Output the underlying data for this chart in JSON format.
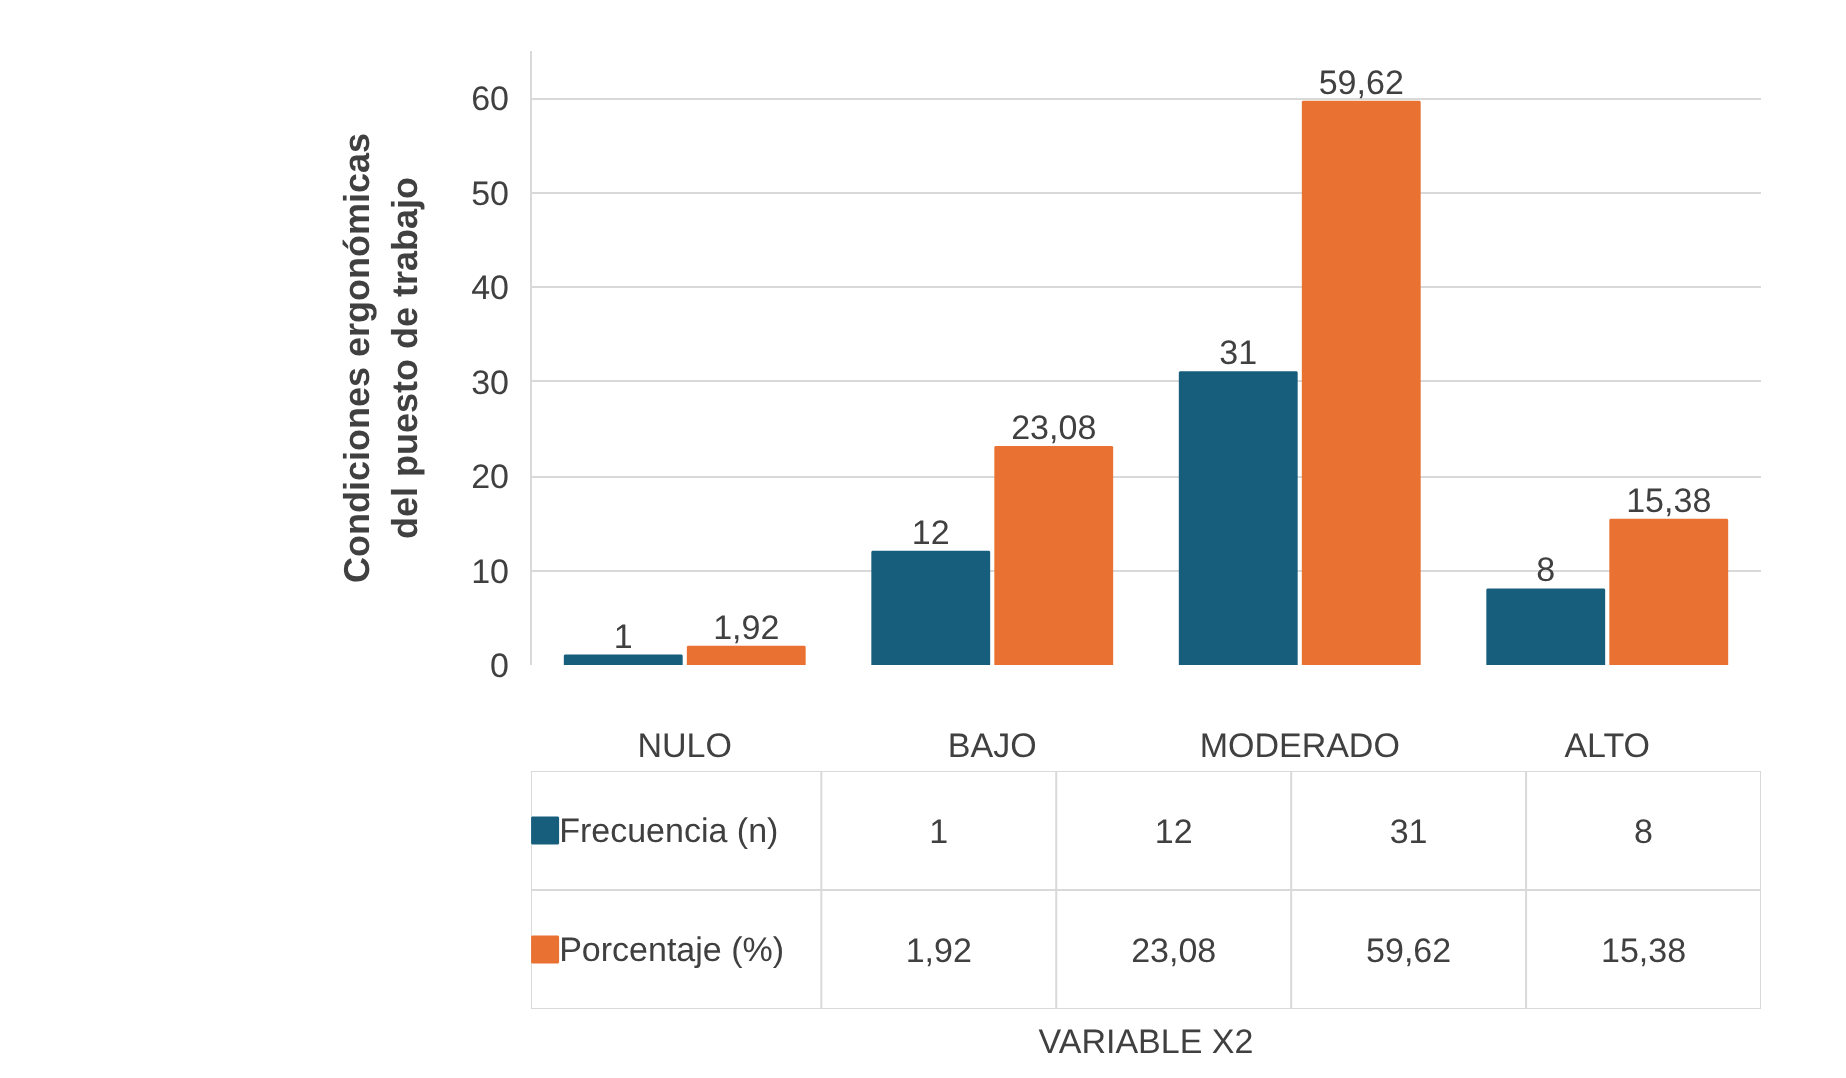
{
  "chart_data": {
    "type": "bar",
    "annotations": [
      "VARIABLE X2"
    ],
    "ylabel": "Condiciones ergonómicas del puesto de trabajo",
    "categories": [
      "NULO",
      "BAJO",
      "MODERADO",
      "ALTO"
    ],
    "series": [
      {
        "name": "Frecuencia (n)",
        "color": "#175e7d",
        "values": [
          1,
          12,
          31,
          8
        ],
        "value_labels": [
          "1",
          "12",
          "31",
          "8"
        ]
      },
      {
        "name": "Porcentaje (%)",
        "color": "#e97132",
        "values": [
          1.92,
          23.08,
          59.62,
          15.38
        ],
        "value_labels": [
          "1,92",
          "23,08",
          "59,62",
          "15,38"
        ]
      }
    ],
    "ylim": [
      0,
      65
    ],
    "yticks": [
      0,
      10,
      20,
      30,
      40,
      50,
      60
    ],
    "grid": "y",
    "legend": "bottom"
  }
}
